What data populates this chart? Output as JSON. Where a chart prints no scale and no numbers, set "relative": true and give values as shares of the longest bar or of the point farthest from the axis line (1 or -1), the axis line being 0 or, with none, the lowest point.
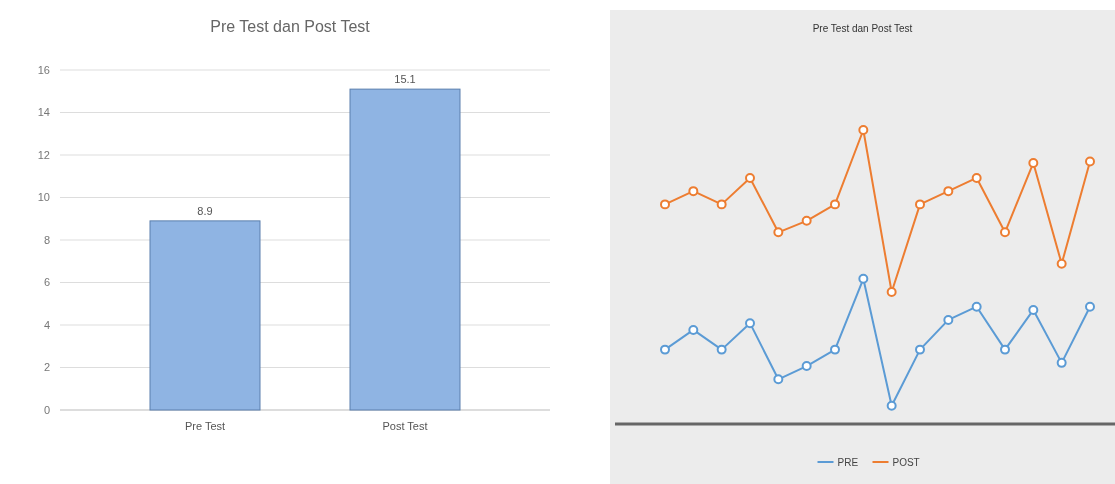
{
  "chart_data": [
    {
      "type": "bar",
      "title": "Pre Test dan Post Test",
      "categories": [
        "Pre Test",
        "Post Test"
      ],
      "values": [
        8.9,
        15.1
      ],
      "color": "#8fb4e3",
      "ylim": [
        0,
        16
      ],
      "yticks": [
        0,
        2,
        4,
        6,
        8,
        10,
        12,
        14,
        16
      ],
      "grid": true,
      "data_labels": true
    },
    {
      "type": "line",
      "title": "Pre Test dan Post Test",
      "relative": true,
      "categories": [
        null,
        null,
        null,
        null,
        null,
        null,
        null,
        null,
        null,
        null,
        null,
        null,
        null,
        null,
        null,
        null
      ],
      "series": [
        {
          "name": "PRE",
          "color": "#5b9bd5",
          "values": [
            0.253,
            0.32,
            0.253,
            0.343,
            0.152,
            0.197,
            0.253,
            0.494,
            0.062,
            0.253,
            0.354,
            0.399,
            0.253,
            0.388,
            0.208,
            0.399
          ]
        },
        {
          "name": "POST",
          "color": "#ed7d31",
          "values": [
            0.747,
            0.792,
            0.747,
            0.837,
            0.652,
            0.691,
            0.747,
            1,
            0.449,
            0.747,
            0.792,
            0.837,
            0.652,
            0.888,
            0.545,
            0.893
          ]
        }
      ],
      "marker": "circle",
      "legend": "bottom"
    }
  ]
}
